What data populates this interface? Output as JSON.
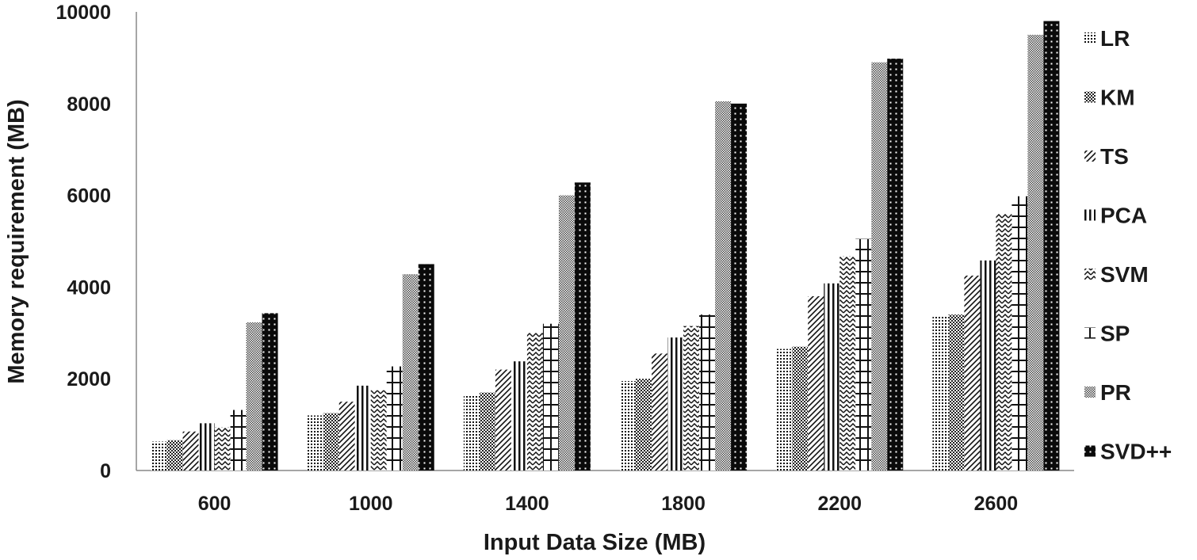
{
  "chart_data": {
    "type": "bar",
    "title": "",
    "xlabel": "Input Data Size (MB)",
    "ylabel": "Memory requirement (MB)",
    "ylim": [
      0,
      10000
    ],
    "yticks": [
      0,
      2000,
      4000,
      6000,
      8000,
      10000
    ],
    "grid": false,
    "legend": "right",
    "categories": [
      "600",
      "1000",
      "1400",
      "1800",
      "2200",
      "2600"
    ],
    "series": [
      {
        "name": "LR",
        "values": [
          630,
          1200,
          1650,
          1950,
          2650,
          3350
        ]
      },
      {
        "name": "KM",
        "values": [
          660,
          1250,
          1700,
          2000,
          2700,
          3400
        ]
      },
      {
        "name": "TS",
        "values": [
          850,
          1500,
          2200,
          2550,
          3800,
          4250
        ]
      },
      {
        "name": "PCA",
        "values": [
          1030,
          1850,
          2380,
          2900,
          4080,
          4580
        ]
      },
      {
        "name": "SVM",
        "values": [
          950,
          1750,
          3000,
          3150,
          4680,
          5600
        ]
      },
      {
        "name": "SP",
        "values": [
          1320,
          2270,
          3200,
          3400,
          5050,
          5980
        ]
      },
      {
        "name": "PR",
        "values": [
          3230,
          4280,
          6000,
          8050,
          8900,
          9500
        ]
      },
      {
        "name": "SVD++",
        "values": [
          3430,
          4500,
          6280,
          8000,
          8980,
          9800
        ]
      }
    ]
  }
}
